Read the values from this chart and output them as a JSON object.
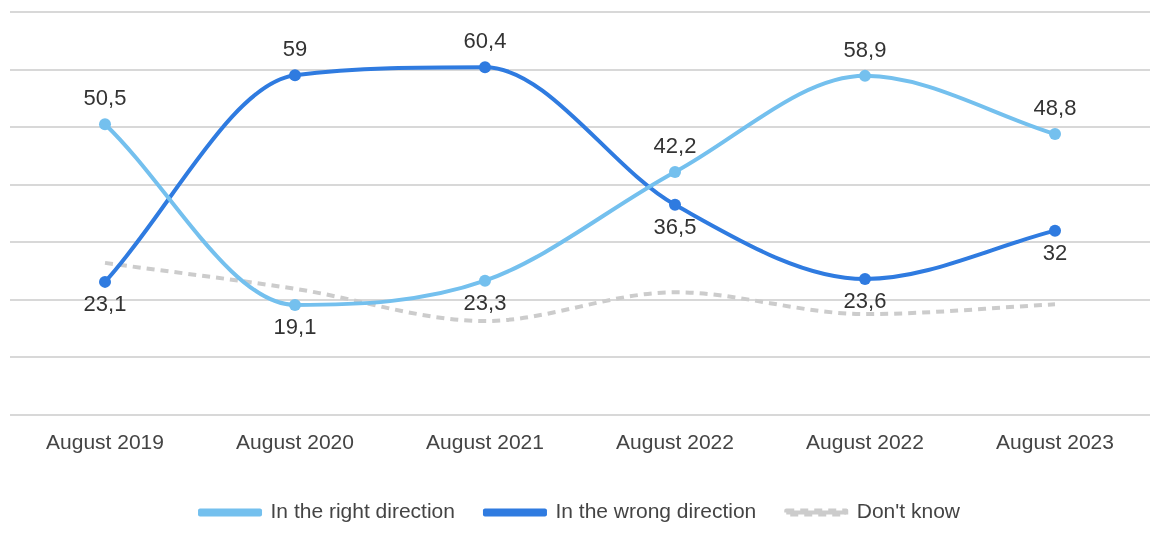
{
  "chart_data": {
    "type": "line",
    "categories": [
      "August 2019",
      "August 2020",
      "August 2021",
      "August 2022",
      "August 2022",
      "August 2023"
    ],
    "series": [
      {
        "name": "In the right direction",
        "color": "#74c0ee",
        "values": [
          50.5,
          19.1,
          23.3,
          42.2,
          58.9,
          48.8
        ],
        "value_labels": [
          "50,5",
          "19,1",
          "23,3",
          "42,2",
          "58,9",
          "48,8"
        ]
      },
      {
        "name": "In the wrong direction",
        "color": "#2f7be0",
        "values": [
          23.1,
          59,
          60.4,
          36.5,
          23.6,
          32
        ],
        "value_labels": [
          "23,1",
          "59",
          "60,4",
          "36,5",
          "23,6",
          "32"
        ]
      },
      {
        "name": "Don't know",
        "color": "#cccccc",
        "values": [
          26.4,
          21.9,
          16.3,
          21.3,
          17.5,
          19.2
        ],
        "marker": "none",
        "line_style": "dashed"
      }
    ],
    "ylim": [
      0,
      70
    ],
    "yticks": [
      {
        "value": 0,
        "label": null
      },
      {
        "value": 10,
        "label": null
      },
      {
        "value": 20,
        "label": null
      },
      {
        "value": 30,
        "label": null
      },
      {
        "value": 40,
        "label": null
      },
      {
        "value": 50,
        "label": null
      },
      {
        "value": 60,
        "label": null
      },
      {
        "value": 70,
        "label": null
      }
    ],
    "tick_labels": "x",
    "grid": "y",
    "legend": "bottom",
    "marker": "circle",
    "line_style": "solid"
  }
}
